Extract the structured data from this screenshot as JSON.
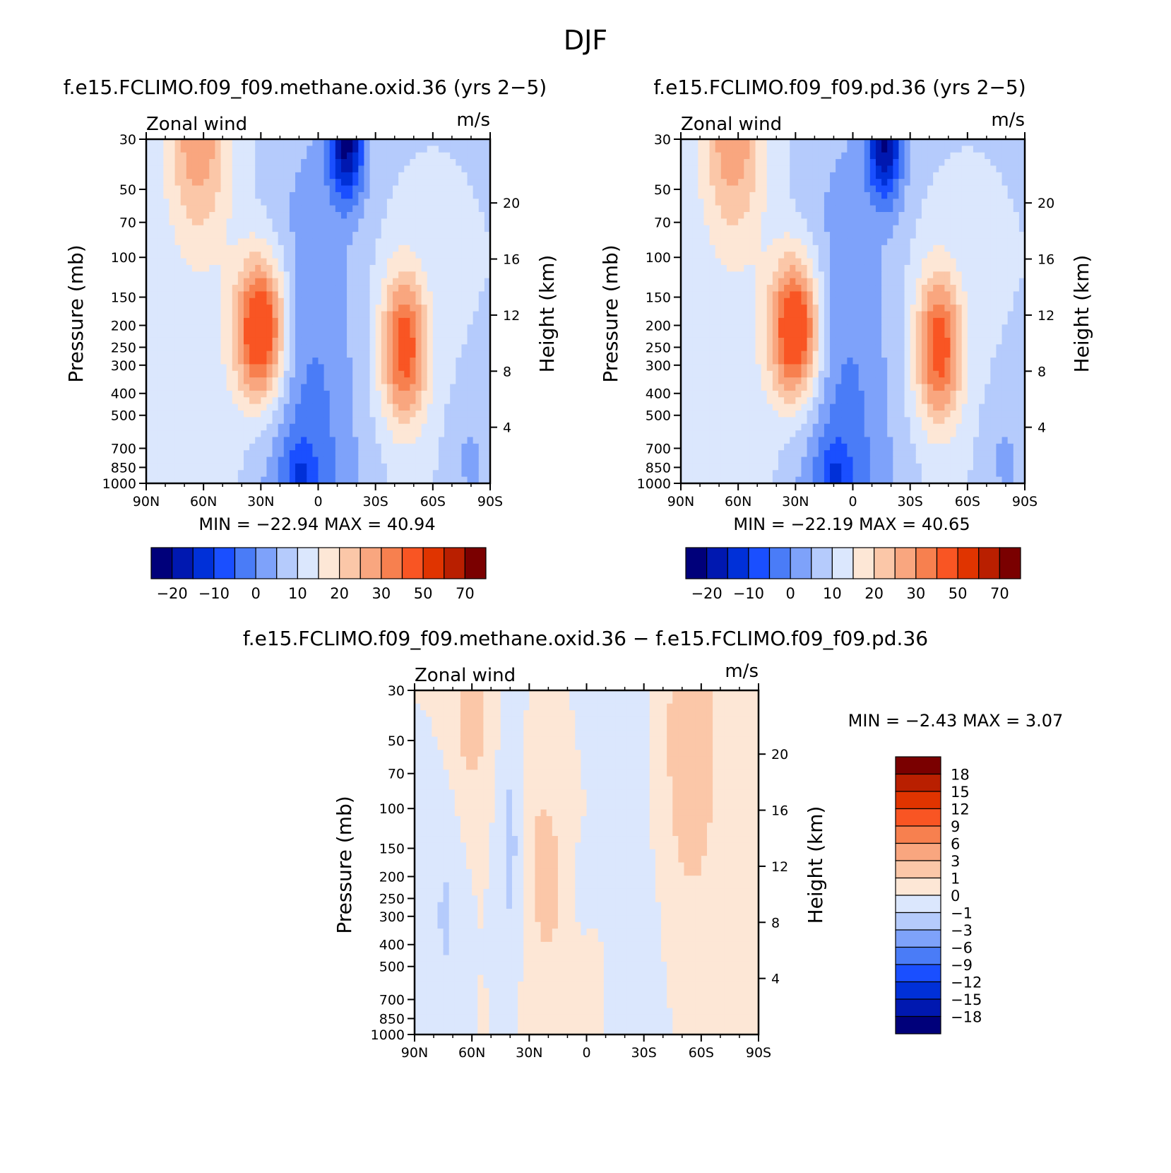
{
  "figure": {
    "title": "DJF",
    "levels": {
      "main": [
        "-25",
        "-20",
        "-15",
        "-10",
        "-5",
        "0",
        "5",
        "10",
        "15",
        "20",
        "25",
        "30",
        "40",
        "50",
        "60",
        "70"
      ],
      "main_labels": [
        "−20",
        "−10",
        "0",
        "10",
        "20",
        "30",
        "50",
        "70"
      ],
      "diff_labels": [
        "18",
        "15",
        "12",
        "9",
        "6",
        "3",
        "1",
        "0",
        "−1",
        "−3",
        "−6",
        "−9",
        "−12",
        "−15",
        "−18"
      ]
    },
    "colors": {
      "main_fill": [
        "#00007a",
        "#0018b0",
        "#0030d8",
        "#1a4fff",
        "#4a7cf7",
        "#7ea2fa",
        "#b5cbfc",
        "#dbe7fd",
        "#fde7d6",
        "#fbc7a8",
        "#f9a67f",
        "#f7804f",
        "#f95523",
        "#e03400",
        "#b91f00",
        "#7a0000"
      ],
      "diff_fill": [
        "#7a0000",
        "#b91f00",
        "#e03400",
        "#f95523",
        "#f7804f",
        "#f9a67f",
        "#fbc7a8",
        "#fde7d6",
        "#dbe7fd",
        "#b5cbfc",
        "#7ea2fa",
        "#4a7cf7",
        "#1a4fff",
        "#0030d8",
        "#0018b0",
        "#00007a"
      ]
    }
  },
  "chart_data": [
    {
      "id": "panel-1",
      "type": "contour",
      "title": "f.e15.FCLIMO.f09_f09.methane.oxid.36 (yrs 2−5)",
      "left_label": "Zonal wind",
      "right_label": "m/s",
      "ylabel": "Pressure (mb)",
      "y2label": "Height (km)",
      "x_ticks": [
        "90N",
        "60N",
        "30N",
        "0",
        "30S",
        "60S",
        "90S"
      ],
      "x_range": [
        90,
        -90
      ],
      "y_ticks": [
        "30",
        "50",
        "70",
        "100",
        "150",
        "200",
        "250",
        "300",
        "400",
        "500",
        "700",
        "850",
        "1000"
      ],
      "y_range_mb": [
        30,
        1000
      ],
      "y2_ticks": [
        "20",
        "16",
        "12",
        "8",
        "4"
      ],
      "min_max": "MIN =  −22.94   MAX =   40.94",
      "min": -22.94,
      "max": 40.94,
      "features": [
        {
          "lat": 30,
          "p": 200,
          "peak": 40.94
        },
        {
          "lat": -45,
          "p": 250,
          "peak": 35
        },
        {
          "lat": -15,
          "p": 30,
          "peak": -22.94
        },
        {
          "lat": 65,
          "p": 30,
          "peak": 20
        }
      ]
    },
    {
      "id": "panel-2",
      "type": "contour",
      "title": "f.e15.FCLIMO.f09_f09.pd.36 (yrs 2−5)",
      "left_label": "Zonal wind",
      "right_label": "m/s",
      "ylabel": "Pressure (mb)",
      "y2label": "Height (km)",
      "x_ticks": [
        "90N",
        "60N",
        "30N",
        "0",
        "30S",
        "60S",
        "90S"
      ],
      "x_range": [
        90,
        -90
      ],
      "y_ticks": [
        "30",
        "50",
        "70",
        "100",
        "150",
        "200",
        "250",
        "300",
        "400",
        "500",
        "700",
        "850",
        "1000"
      ],
      "y_range_mb": [
        30,
        1000
      ],
      "y2_ticks": [
        "20",
        "16",
        "12",
        "8",
        "4"
      ],
      "min_max": "MIN =  −22.19   MAX =   40.65",
      "min": -22.19,
      "max": 40.65,
      "features": [
        {
          "lat": 30,
          "p": 200,
          "peak": 40.65
        },
        {
          "lat": -45,
          "p": 250,
          "peak": 35
        },
        {
          "lat": -17,
          "p": 30,
          "peak": -22.19
        },
        {
          "lat": 67,
          "p": 30,
          "peak": 18
        }
      ]
    },
    {
      "id": "panel-diff",
      "type": "contour",
      "title": "f.e15.FCLIMO.f09_f09.methane.oxid.36 − f.e15.FCLIMO.f09_f09.pd.36",
      "left_label": "Zonal wind",
      "right_label": "m/s",
      "ylabel": "Pressure (mb)",
      "y2label": "Height (km)",
      "x_ticks": [
        "90N",
        "60N",
        "30N",
        "0",
        "30S",
        "60S",
        "90S"
      ],
      "x_range": [
        90,
        -90
      ],
      "y_ticks": [
        "30",
        "50",
        "70",
        "100",
        "150",
        "200",
        "250",
        "300",
        "400",
        "500",
        "700",
        "850",
        "1000"
      ],
      "y_range_mb": [
        30,
        1000
      ],
      "y2_ticks": [
        "20",
        "16",
        "12",
        "8",
        "4"
      ],
      "min_max": "MIN =    −2.43   MAX =    3.07",
      "min": -2.43,
      "max": 3.07,
      "features": [
        {
          "lat": 60,
          "p": 40,
          "peak": 1.5
        },
        {
          "lat": -55,
          "p": 40,
          "peak": 3.07
        },
        {
          "lat": 22,
          "p": 200,
          "peak": 1.2
        },
        {
          "lat": 40,
          "p": 150,
          "peak": -1.5
        },
        {
          "lat": 75,
          "p": 300,
          "peak": -1.2
        }
      ]
    }
  ]
}
